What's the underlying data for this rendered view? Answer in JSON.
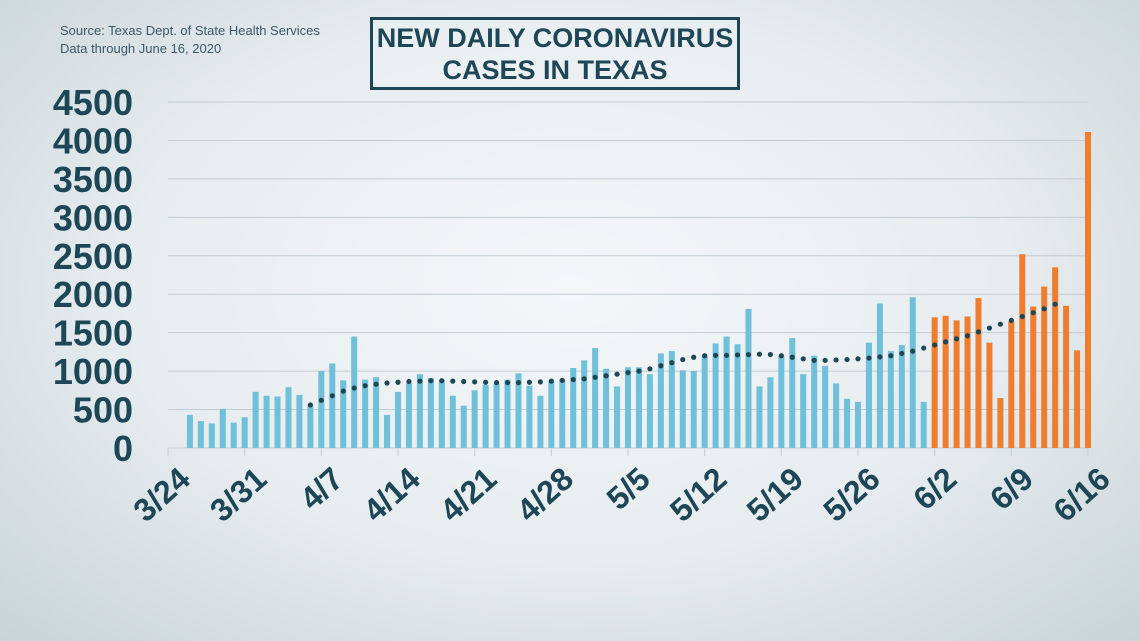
{
  "source": {
    "line1": "Source: Texas Dept. of State Health Services",
    "line2": "Data through  June 16, 2020"
  },
  "title": {
    "line1": "NEW DAILY CORONAVIRUS",
    "line2": "CASES IN TEXAS"
  },
  "colors": {
    "blue": "#6fc0d8",
    "orange": "#ef7d2e",
    "trend": "#1d4756",
    "grid": "#c3cdd2",
    "text": "#1d4756"
  },
  "chart_data": {
    "type": "bar",
    "x_start": "3/24",
    "x_end": "6/16",
    "ylim": [
      0,
      4500
    ],
    "yticks": [
      0,
      500,
      1000,
      1500,
      2000,
      2500,
      3000,
      3500,
      4000,
      4500
    ],
    "xticks": [
      "3/24",
      "3/31",
      "4/7",
      "4/14",
      "4/21",
      "4/28",
      "5/5",
      "5/12",
      "5/19",
      "5/26",
      "6/2",
      "6/9",
      "6/16"
    ],
    "grid": true,
    "series": [
      {
        "color_key": "blue",
        "start_date": "3/26",
        "values": [
          430,
          350,
          320,
          510,
          330,
          400,
          730,
          680,
          670,
          790,
          690,
          560,
          1000,
          1100,
          880,
          1450,
          890,
          920,
          430,
          730,
          840,
          960,
          910,
          880,
          680,
          550,
          750,
          820,
          840,
          890,
          970,
          810,
          680,
          870,
          890,
          1040,
          1140,
          1300,
          1030,
          800,
          1050,
          1050,
          960,
          1230,
          1260,
          1010,
          1000,
          1200,
          1360,
          1450,
          1350,
          1810,
          800,
          920,
          1200,
          1430,
          960,
          1200,
          1070,
          840,
          640,
          600,
          1370,
          1880,
          1260,
          1340,
          1960,
          600
        ]
      },
      {
        "color_key": "orange",
        "start_date": "6/2",
        "values": [
          1700,
          1720,
          1660,
          1710,
          1950,
          1370,
          650,
          1650,
          2520,
          1840,
          2100,
          2350,
          1850,
          1270,
          4110
        ]
      }
    ],
    "trend": {
      "start_date": "4/6",
      "values": [
        560,
        620,
        680,
        740,
        780,
        810,
        830,
        845,
        855,
        865,
        870,
        875,
        875,
        870,
        865,
        860,
        855,
        850,
        850,
        850,
        855,
        860,
        870,
        880,
        890,
        900,
        920,
        940,
        960,
        980,
        1000,
        1030,
        1070,
        1110,
        1150,
        1180,
        1200,
        1205,
        1205,
        1210,
        1215,
        1220,
        1215,
        1200,
        1180,
        1160,
        1140,
        1140,
        1145,
        1150,
        1160,
        1170,
        1185,
        1200,
        1230,
        1260,
        1300,
        1340,
        1380,
        1420,
        1460,
        1510,
        1560,
        1610,
        1660,
        1710,
        1760,
        1810,
        1870
      ]
    }
  }
}
